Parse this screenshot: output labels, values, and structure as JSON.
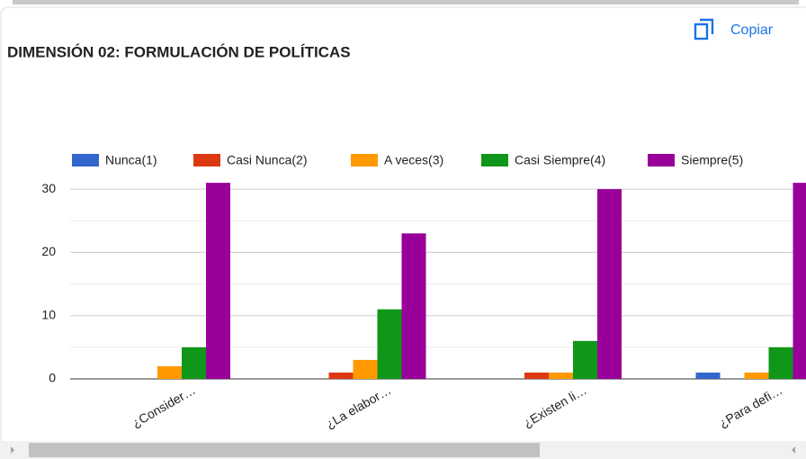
{
  "button": {
    "label": "Copiar"
  },
  "chart_data": {
    "type": "bar",
    "title": "DIMENSIÓN 02: FORMULACIÓN DE POLÍTICAS",
    "categories": [
      "¿Consider…",
      "¿La elabor…",
      "¿Existen li…",
      "¿Para defi…"
    ],
    "series": [
      {
        "name": "Nunca(1)",
        "color": "#3366cc",
        "values": [
          0,
          0,
          0,
          1
        ]
      },
      {
        "name": "Casi Nunca(2)",
        "color": "#dc3912",
        "values": [
          0,
          1,
          1,
          0
        ]
      },
      {
        "name": "A veces(3)",
        "color": "#ff9900",
        "values": [
          2,
          3,
          1,
          1
        ]
      },
      {
        "name": "Casi Siempre(4)",
        "color": "#109618",
        "values": [
          5,
          11,
          6,
          5
        ]
      },
      {
        "name": "Siempre(5)",
        "color": "#990099",
        "values": [
          31,
          23,
          30,
          31
        ]
      }
    ],
    "ylim": [
      0,
      35
    ],
    "yticks": [
      0,
      10,
      20,
      30
    ],
    "yticks_minor": [
      5,
      15,
      25
    ],
    "grid": true,
    "legend": "top"
  }
}
